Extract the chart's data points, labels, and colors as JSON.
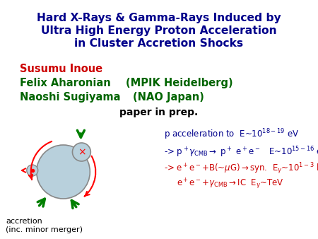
{
  "title_line1": "Hard X-Rays & Gamma-Rays Induced by",
  "title_line2": "Ultra High Energy Proton Acceleration",
  "title_line3": "in Cluster Accretion Shocks",
  "title_color": "#00008B",
  "author1": "Susumu Inoue",
  "author1_color": "#CC0000",
  "author2": "Felix Aharonian",
  "author2_color": "#006400",
  "author3": "Naoshi Sugiyama",
  "author3_color": "#006400",
  "affil1": "(MPIK Heidelberg)",
  "affil2": "(NAO Japan)",
  "affil_color": "#006400",
  "paper_note": "paper in prep.",
  "bg_color": "#FFFFFF",
  "blue": "#00008B",
  "red": "#CC0000",
  "green": "#008000",
  "diagram_fill": "#B8D0DC",
  "diagram_edge": "#888888"
}
